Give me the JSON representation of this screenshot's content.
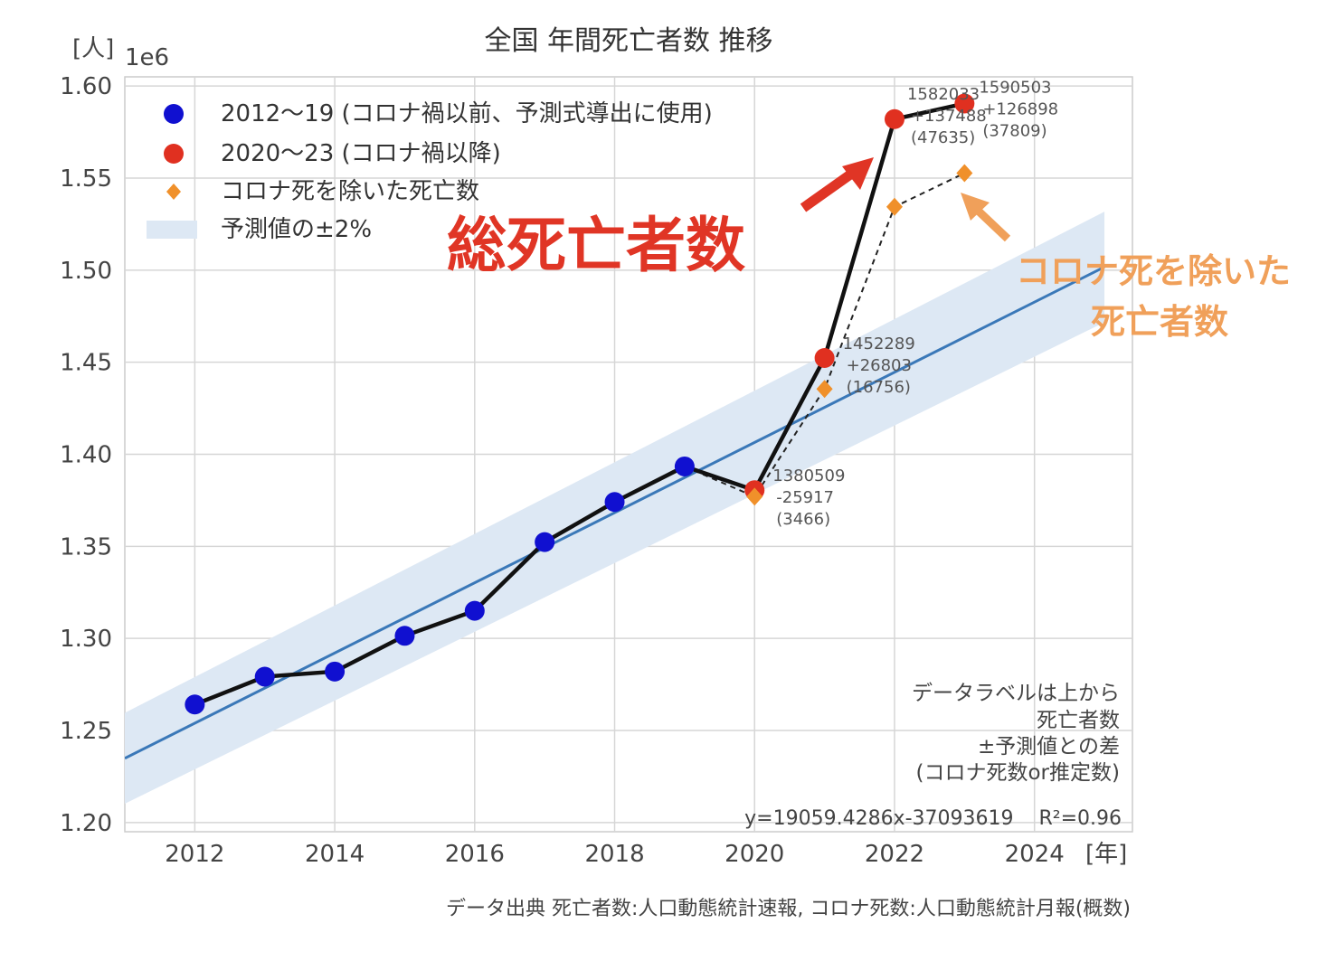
{
  "chart_data": {
    "type": "line",
    "title": "全国 年間死亡者数 推移",
    "ylabel": "[人]",
    "y_scale_label": "1e6",
    "xlabel": "[年]",
    "xlim": [
      2011,
      2025.4
    ],
    "ylim": [
      1.195,
      1.605
    ],
    "x_ticks": [
      2012,
      2014,
      2016,
      2018,
      2020,
      2022,
      2024
    ],
    "y_ticks": [
      1.2,
      1.25,
      1.3,
      1.35,
      1.4,
      1.45,
      1.5,
      1.55,
      1.6
    ],
    "y_tick_labels": [
      "1.20",
      "1.25",
      "1.30",
      "1.35",
      "1.40",
      "1.45",
      "1.50",
      "1.55",
      "1.60"
    ],
    "grid": true,
    "legend_position": "top-left",
    "legend": [
      {
        "label": "2012～19 (コロナ禍以前、予測式導出に使用)",
        "marker": "circle",
        "color": "#1010d0"
      },
      {
        "label": "2020～23 (コロナ禍以降)",
        "marker": "circle",
        "color": "#e03020"
      },
      {
        "label": "コロナ死を除いた死亡数",
        "marker": "diamond",
        "color": "#f0902a"
      },
      {
        "label": "予測値の±2%",
        "marker": "band",
        "color": "#dde8f4"
      }
    ],
    "series": [
      {
        "name": "2012～19 (コロナ禍以前、予測式導出に使用)",
        "color": "#1010d0",
        "x": [
          2012,
          2013,
          2014,
          2015,
          2016,
          2017,
          2018,
          2019
        ],
        "y": [
          1.2641,
          1.2792,
          1.282,
          1.3014,
          1.315,
          1.3523,
          1.3741,
          1.3934
        ]
      },
      {
        "name": "2020～23 (コロナ禍以降)",
        "color": "#e03020",
        "x": [
          2020,
          2021,
          2022,
          2023
        ],
        "y": [
          1.380509,
          1.452289,
          1.582033,
          1.590503
        ]
      },
      {
        "name": "コロナ死を除いた死亡数",
        "color": "#f0902a",
        "x": [
          2020,
          2021,
          2022,
          2023
        ],
        "y": [
          1.377,
          1.4355,
          1.5344,
          1.5527
        ]
      }
    ],
    "regression": {
      "slope": 19059.4286,
      "intercept": -37093619,
      "x_range": [
        2011,
        2025
      ],
      "band_pct": 2,
      "color": "#3a78b8",
      "band_color": "#dde8f4"
    },
    "data_labels": [
      {
        "id": "2020",
        "lines": [
          "1380509",
          "-25917",
          "(3466)"
        ]
      },
      {
        "id": "2021",
        "lines": [
          "1452289",
          "+26803",
          "(16756)"
        ]
      },
      {
        "id": "2022",
        "lines": [
          "1582033",
          "+137488",
          "(47635)"
        ]
      },
      {
        "id": "2023",
        "lines": [
          "1590503",
          "+126898",
          "(37809)"
        ]
      }
    ],
    "equation": "y=19059.4286x-37093619    R²=0.96",
    "note_lines": [
      "データラベルは上から",
      "死亡者数",
      "±予測値との差",
      "(コロナ死数or推定数)"
    ],
    "annotation_total": "総死亡者数",
    "annotation_excl": [
      "コロナ死を除いた",
      "死亡者数"
    ],
    "source": "データ出典 死亡者数:人口動態統計速報, コロナ死数:人口動態統計月報(概数)"
  }
}
